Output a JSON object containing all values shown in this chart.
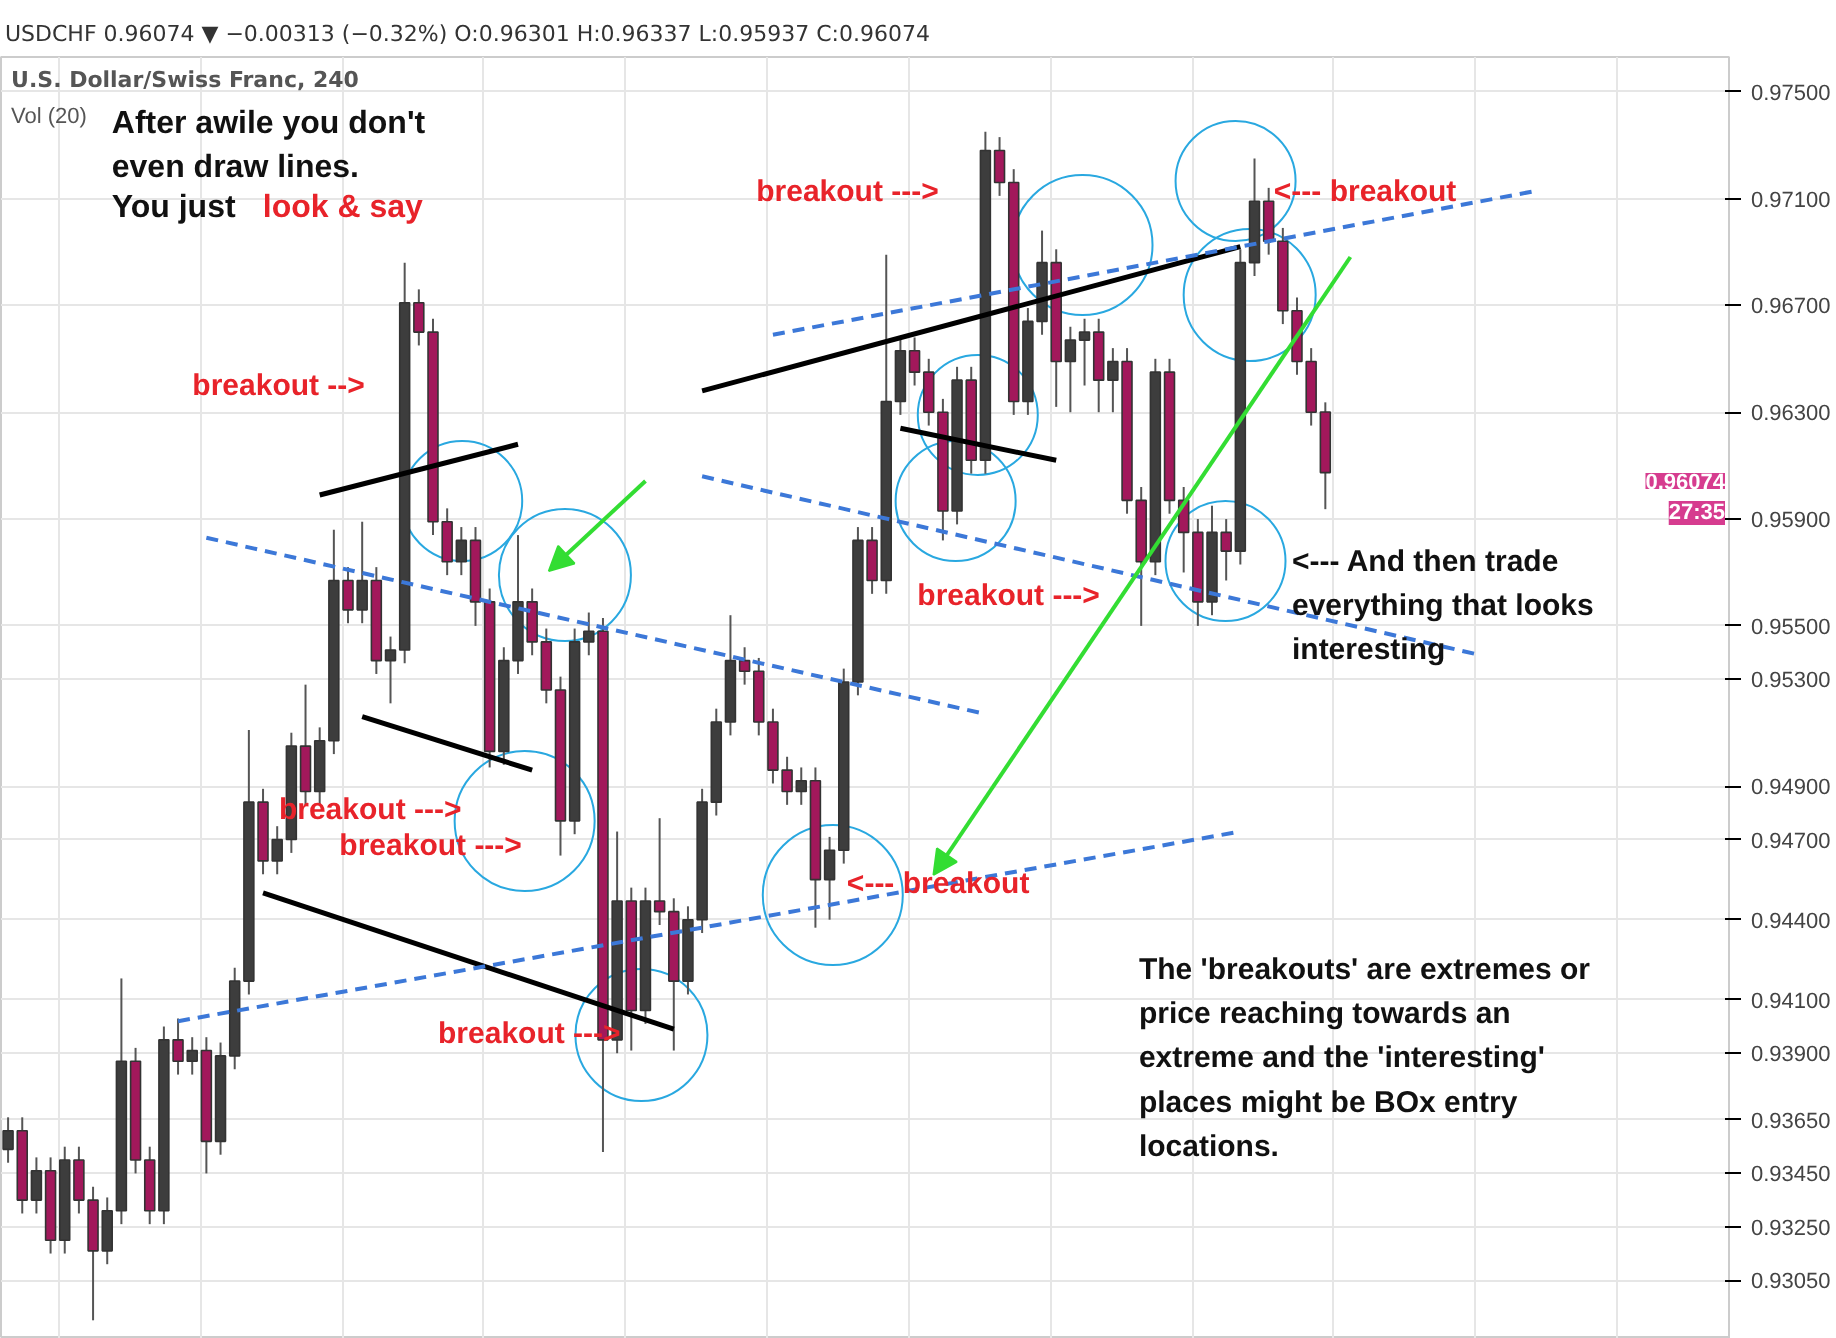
{
  "chart_data": {
    "type": "candlestick",
    "title": "USDCHF 0.96074 ▼ −0.00313 (−0.32%) O:0.96301 H:0.96337 L:0.95937 C:0.96074",
    "subtitle": "U.S. Dollar/Swiss Franc, 240",
    "categories": [
      null,
      null,
      null,
      null,
      null,
      null,
      null,
      null,
      null,
      null,
      null,
      null,
      null,
      null,
      null,
      null,
      null,
      null,
      null,
      null,
      null,
      null,
      null,
      null,
      null,
      null,
      null,
      null,
      null,
      null,
      null,
      null,
      null,
      null,
      null,
      null,
      null,
      null,
      null,
      null,
      null,
      null,
      null,
      null,
      null,
      null,
      null,
      null,
      null,
      null,
      null,
      null,
      null,
      null,
      null,
      null,
      null,
      null,
      null,
      null,
      null,
      null,
      null,
      null,
      null,
      null,
      null,
      null,
      null,
      null,
      null,
      null,
      null,
      null,
      null,
      null,
      null,
      null,
      null,
      null,
      null,
      null,
      null,
      null,
      null,
      null,
      null,
      null,
      null,
      null,
      null,
      null,
      null,
      null,
      null,
      null,
      null,
      null,
      null,
      null,
      null,
      null,
      null,
      null,
      null,
      null,
      null,
      null,
      null,
      null,
      null,
      null,
      null,
      null,
      null,
      null,
      null,
      null,
      null,
      null,
      null,
      null
    ],
    "ohlc": [
      [
        0.9354,
        0.9366,
        0.9349,
        0.9361
      ],
      [
        0.9361,
        0.9366,
        0.933,
        0.9335
      ],
      [
        0.9335,
        0.9351,
        0.933,
        0.9346
      ],
      [
        0.9346,
        0.9351,
        0.9315,
        0.932
      ],
      [
        0.932,
        0.9355,
        0.9315,
        0.935
      ],
      [
        0.935,
        0.9355,
        0.933,
        0.9335
      ],
      [
        0.9335,
        0.934,
        0.929,
        0.9316
      ],
      [
        0.9316,
        0.9336,
        0.9311,
        0.9331
      ],
      [
        0.9331,
        0.9418,
        0.9326,
        0.9387
      ],
      [
        0.9387,
        0.9392,
        0.9345,
        0.935
      ],
      [
        0.935,
        0.9355,
        0.9326,
        0.9331
      ],
      [
        0.9331,
        0.94,
        0.9326,
        0.9395
      ],
      [
        0.9395,
        0.9403,
        0.9382,
        0.9387
      ],
      [
        0.9387,
        0.9396,
        0.9382,
        0.9391
      ],
      [
        0.9391,
        0.9396,
        0.9345,
        0.9357
      ],
      [
        0.9357,
        0.9394,
        0.9352,
        0.9389
      ],
      [
        0.9389,
        0.9422,
        0.9384,
        0.9417
      ],
      [
        0.9417,
        0.9511,
        0.9412,
        0.9484
      ],
      [
        0.9484,
        0.9489,
        0.9457,
        0.9462
      ],
      [
        0.9462,
        0.9475,
        0.9457,
        0.947
      ],
      [
        0.947,
        0.951,
        0.9465,
        0.9505
      ],
      [
        0.9505,
        0.9528,
        0.9483,
        0.9488
      ],
      [
        0.9488,
        0.9512,
        0.9483,
        0.9507
      ],
      [
        0.9507,
        0.9586,
        0.9502,
        0.9567
      ],
      [
        0.9567,
        0.9572,
        0.9551,
        0.9556
      ],
      [
        0.9556,
        0.9589,
        0.9551,
        0.9567
      ],
      [
        0.9567,
        0.9572,
        0.9532,
        0.9537
      ],
      [
        0.9537,
        0.9546,
        0.9521,
        0.9541
      ],
      [
        0.9541,
        0.9686,
        0.9536,
        0.9671
      ],
      [
        0.9671,
        0.9676,
        0.9655,
        0.966
      ],
      [
        0.966,
        0.9665,
        0.9584,
        0.9589
      ],
      [
        0.9589,
        0.9594,
        0.9569,
        0.9574
      ],
      [
        0.9574,
        0.9587,
        0.9569,
        0.9582
      ],
      [
        0.9582,
        0.9587,
        0.955,
        0.9559
      ],
      [
        0.9559,
        0.9564,
        0.9497,
        0.9503
      ],
      [
        0.9503,
        0.9542,
        0.9498,
        0.9537
      ],
      [
        0.9537,
        0.9584,
        0.9532,
        0.9559
      ],
      [
        0.9559,
        0.9564,
        0.9539,
        0.9544
      ],
      [
        0.9544,
        0.9549,
        0.9521,
        0.9526
      ],
      [
        0.9526,
        0.9531,
        0.9464,
        0.9477
      ],
      [
        0.9477,
        0.9549,
        0.9472,
        0.9544
      ],
      [
        0.9544,
        0.9555,
        0.9539,
        0.9548
      ],
      [
        0.9548,
        0.9553,
        0.9353,
        0.9395
      ],
      [
        0.9395,
        0.9473,
        0.939,
        0.9447
      ],
      [
        0.9447,
        0.9452,
        0.9391,
        0.9406
      ],
      [
        0.9406,
        0.9452,
        0.9401,
        0.9447
      ],
      [
        0.9447,
        0.9478,
        0.9438,
        0.9443
      ],
      [
        0.9443,
        0.9448,
        0.9391,
        0.9417
      ],
      [
        0.9417,
        0.9445,
        0.9412,
        0.944
      ],
      [
        0.944,
        0.9489,
        0.9435,
        0.9484
      ],
      [
        0.9484,
        0.9519,
        0.9479,
        0.9514
      ],
      [
        0.9514,
        0.9554,
        0.9509,
        0.9537
      ],
      [
        0.9537,
        0.9542,
        0.9528,
        0.9533
      ],
      [
        0.9533,
        0.9538,
        0.9509,
        0.9514
      ],
      [
        0.9514,
        0.9519,
        0.9491,
        0.9496
      ],
      [
        0.9496,
        0.9501,
        0.9483,
        0.9488
      ],
      [
        0.9488,
        0.9497,
        0.9483,
        0.9492
      ],
      [
        0.9492,
        0.9497,
        0.9437,
        0.9455
      ],
      [
        0.9455,
        0.9471,
        0.944,
        0.9466
      ],
      [
        0.9466,
        0.9534,
        0.9461,
        0.9529
      ],
      [
        0.9529,
        0.9587,
        0.9524,
        0.9582
      ],
      [
        0.9582,
        0.9587,
        0.9562,
        0.9567
      ],
      [
        0.9567,
        0.9689,
        0.9562,
        0.9634
      ],
      [
        0.9634,
        0.9658,
        0.9629,
        0.9653
      ],
      [
        0.9653,
        0.9658,
        0.964,
        0.9645
      ],
      [
        0.9645,
        0.965,
        0.9625,
        0.963
      ],
      [
        0.963,
        0.9635,
        0.9582,
        0.9593
      ],
      [
        0.9593,
        0.9647,
        0.9588,
        0.9642
      ],
      [
        0.9642,
        0.9647,
        0.9607,
        0.9612
      ],
      [
        0.9612,
        0.9735,
        0.9607,
        0.9728
      ],
      [
        0.9728,
        0.9733,
        0.9711,
        0.9716
      ],
      [
        0.9716,
        0.9721,
        0.9629,
        0.9634
      ],
      [
        0.9634,
        0.9669,
        0.9629,
        0.9664
      ],
      [
        0.9664,
        0.9698,
        0.9659,
        0.9686
      ],
      [
        0.9686,
        0.9691,
        0.9632,
        0.9649
      ],
      [
        0.9649,
        0.9662,
        0.963,
        0.9657
      ],
      [
        0.9657,
        0.9665,
        0.964,
        0.966
      ],
      [
        0.966,
        0.9665,
        0.963,
        0.9642
      ],
      [
        0.9642,
        0.9654,
        0.963,
        0.9649
      ],
      [
        0.9649,
        0.9654,
        0.9592,
        0.9597
      ],
      [
        0.9597,
        0.9602,
        0.955,
        0.9574
      ],
      [
        0.9574,
        0.965,
        0.9569,
        0.9645
      ],
      [
        0.9645,
        0.965,
        0.9592,
        0.9597
      ],
      [
        0.9597,
        0.9602,
        0.957,
        0.9585
      ],
      [
        0.9585,
        0.959,
        0.955,
        0.9559
      ],
      [
        0.9559,
        0.9595,
        0.9554,
        0.9585
      ],
      [
        0.9585,
        0.959,
        0.9567,
        0.9578
      ],
      [
        0.9578,
        0.9691,
        0.9573,
        0.9686
      ],
      [
        0.9686,
        0.9725,
        0.9681,
        0.9709
      ],
      [
        0.9709,
        0.9714,
        0.9689,
        0.9694
      ],
      [
        0.9694,
        0.9699,
        0.9663,
        0.9668
      ],
      [
        0.9668,
        0.9673,
        0.9644,
        0.9649
      ],
      [
        0.9649,
        0.9654,
        0.9625,
        0.963
      ],
      [
        0.96301,
        0.96337,
        0.95937,
        0.96074
      ],
      null,
      null,
      null,
      null,
      null,
      null,
      null,
      null,
      null,
      null,
      null,
      null,
      null,
      null,
      null,
      null,
      null,
      null,
      null,
      null,
      null,
      null,
      null,
      null,
      null,
      null,
      null,
      null
    ],
    "colors": [
      "#3d3d3d",
      "#a2185b",
      "#3d3d3d",
      "#a2185b",
      "#3d3d3d",
      "#a2185b",
      "#a2185b",
      "#3d3d3d",
      "#3d3d3d",
      "#a2185b",
      "#a2185b",
      "#3d3d3d",
      "#a2185b",
      "#3d3d3d",
      "#a2185b",
      "#3d3d3d",
      "#3d3d3d",
      "#3d3d3d",
      "#a2185b",
      "#3d3d3d",
      "#3d3d3d",
      "#a2185b",
      "#3d3d3d",
      "#3d3d3d",
      "#a2185b",
      "#3d3d3d",
      "#a2185b",
      "#3d3d3d",
      "#3d3d3d",
      "#a2185b",
      "#a2185b",
      "#a2185b",
      "#3d3d3d",
      "#a2185b",
      "#a2185b",
      "#3d3d3d",
      "#3d3d3d",
      "#a2185b",
      "#a2185b",
      "#a2185b",
      "#3d3d3d",
      "#3d3d3d",
      "#a2185b",
      "#3d3d3d",
      "#a2185b",
      "#3d3d3d",
      "#a2185b",
      "#a2185b",
      "#3d3d3d",
      "#3d3d3d",
      "#3d3d3d",
      "#3d3d3d",
      "#a2185b",
      "#a2185b",
      "#a2185b",
      "#a2185b",
      "#3d3d3d",
      "#a2185b",
      "#3d3d3d",
      "#3d3d3d",
      "#3d3d3d",
      "#a2185b",
      "#3d3d3d",
      "#3d3d3d",
      "#a2185b",
      "#a2185b",
      "#a2185b",
      "#3d3d3d",
      "#a2185b",
      "#3d3d3d",
      "#a2185b",
      "#a2185b",
      "#3d3d3d",
      "#3d3d3d",
      "#a2185b",
      "#3d3d3d",
      "#3d3d3d",
      "#a2185b",
      "#3d3d3d",
      "#a2185b",
      "#a2185b",
      "#3d3d3d",
      "#a2185b",
      "#a2185b",
      "#a2185b",
      "#3d3d3d",
      "#a2185b",
      "#3d3d3d",
      "#3d3d3d",
      "#a2185b",
      "#a2185b",
      "#a2185b",
      "#a2185b",
      "#a2185b",
      null,
      null,
      null,
      null,
      null,
      null,
      null,
      null,
      null,
      null,
      null,
      null,
      null,
      null,
      null,
      null,
      null,
      null,
      null,
      null,
      null,
      null,
      null,
      null,
      null,
      null,
      null,
      null
    ],
    "series": [
      {
        "type": "line",
        "values": [
          null,
          null,
          null,
          null,
          null,
          null,
          null,
          null,
          null,
          null,
          null,
          null,
          null,
          null,
          null,
          null,
          null,
          null,
          null,
          null,
          null,
          null,
          0.9599,
          null,
          null,
          null,
          null,
          null,
          null,
          null,
          null,
          null,
          null,
          null,
          null,
          null,
          0.9618,
          null,
          null,
          null,
          null,
          null,
          null,
          null,
          null,
          null,
          null,
          null,
          null,
          null,
          null,
          null,
          null,
          null,
          null,
          null,
          null,
          null,
          null,
          null,
          null,
          null,
          null,
          null,
          null,
          null,
          null,
          null,
          null,
          null,
          null,
          null,
          null,
          null,
          null,
          null,
          null,
          null,
          null,
          null,
          null,
          null,
          null,
          null,
          null,
          null,
          null,
          null,
          null,
          null,
          null,
          null,
          null,
          null,
          null,
          null,
          null,
          null,
          null,
          null,
          null,
          null,
          null,
          null,
          null,
          null,
          null,
          null,
          null,
          null,
          null,
          null,
          null,
          null,
          null,
          null,
          null,
          null,
          null,
          null,
          null,
          null
        ],
        "color": "#000000",
        "line_style": "solid"
      },
      {
        "type": "line",
        "values": [
          null,
          null,
          null,
          null,
          null,
          null,
          null,
          null,
          null,
          null,
          null,
          null,
          null,
          null,
          null,
          null,
          null,
          null,
          null,
          null,
          null,
          null,
          null,
          null,
          null,
          0.9516,
          null,
          null,
          null,
          null,
          null,
          null,
          null,
          null,
          null,
          null,
          null,
          0.9496,
          null,
          null,
          null,
          null,
          null,
          null,
          null,
          null,
          null,
          null,
          null,
          null,
          null,
          null,
          null,
          null,
          null,
          null,
          null,
          null,
          null,
          null,
          null,
          null,
          null,
          null,
          null,
          null,
          null,
          null,
          null,
          null,
          null,
          null,
          null,
          null,
          null,
          null,
          null,
          null,
          null,
          null,
          null,
          null,
          null,
          null,
          null,
          null,
          null,
          null,
          null,
          null,
          null,
          null,
          null,
          null,
          null,
          null,
          null,
          null,
          null,
          null,
          null,
          null,
          null,
          null,
          null,
          null,
          null,
          null,
          null,
          null,
          null,
          null,
          null,
          null,
          null,
          null,
          null,
          null,
          null,
          null,
          null,
          null
        ],
        "color": "#000000",
        "line_style": "solid"
      },
      {
        "type": "line",
        "values": [
          null,
          null,
          null,
          null,
          null,
          null,
          null,
          null,
          null,
          null,
          null,
          null,
          null,
          null,
          null,
          null,
          null,
          null,
          0.945,
          null,
          null,
          null,
          null,
          null,
          null,
          null,
          null,
          null,
          null,
          null,
          null,
          null,
          null,
          null,
          null,
          null,
          null,
          null,
          null,
          null,
          null,
          null,
          null,
          null,
          null,
          null,
          null,
          0.9399,
          null,
          null,
          null,
          null,
          null,
          null,
          null,
          null,
          null,
          null,
          null,
          null,
          null,
          null,
          null,
          null,
          null,
          null,
          null,
          null,
          null,
          null,
          null,
          null,
          null,
          null,
          null,
          null,
          null,
          null,
          null,
          null,
          null,
          null,
          null,
          null,
          null,
          null,
          null,
          null,
          null,
          null,
          null,
          null,
          null,
          null,
          null,
          null,
          null,
          null,
          null,
          null,
          null,
          null,
          null,
          null,
          null,
          null,
          null,
          null,
          null,
          null,
          null,
          null,
          null,
          null,
          null,
          null,
          null,
          null,
          null,
          null,
          null,
          null
        ],
        "color": "#000000",
        "line_style": "solid"
      },
      {
        "type": "line",
        "values": [
          null,
          null,
          null,
          null,
          null,
          null,
          null,
          null,
          null,
          null,
          null,
          null,
          null,
          null,
          null,
          null,
          null,
          null,
          null,
          null,
          null,
          null,
          null,
          null,
          null,
          null,
          null,
          null,
          null,
          null,
          null,
          null,
          null,
          null,
          null,
          null,
          null,
          null,
          null,
          null,
          null,
          null,
          null,
          null,
          null,
          null,
          null,
          null,
          null,
          0.9638,
          null,
          null,
          null,
          null,
          null,
          null,
          null,
          null,
          null,
          null,
          null,
          null,
          null,
          null,
          null,
          null,
          null,
          null,
          null,
          null,
          null,
          null,
          null,
          null,
          null,
          null,
          null,
          null,
          null,
          null,
          null,
          null,
          null,
          null,
          null,
          null,
          null,
          0.9692,
          null,
          null,
          null,
          null,
          null,
          null,
          null,
          null,
          null,
          null,
          null,
          null,
          null,
          null,
          null,
          null,
          null,
          null,
          null,
          null,
          null,
          null,
          null,
          null,
          null,
          null,
          null,
          null,
          null,
          null,
          null,
          null,
          null,
          null
        ],
        "color": "#000000",
        "line_style": "solid"
      },
      {
        "type": "line",
        "values": [
          null,
          null,
          null,
          null,
          null,
          null,
          null,
          null,
          null,
          null,
          null,
          null,
          null,
          null,
          null,
          null,
          null,
          null,
          null,
          null,
          null,
          null,
          null,
          null,
          null,
          null,
          null,
          null,
          null,
          null,
          null,
          null,
          null,
          null,
          null,
          null,
          null,
          null,
          null,
          null,
          null,
          null,
          null,
          null,
          null,
          null,
          null,
          null,
          null,
          null,
          null,
          null,
          null,
          null,
          null,
          null,
          null,
          null,
          null,
          null,
          null,
          null,
          null,
          0.9624,
          null,
          null,
          null,
          null,
          null,
          null,
          null,
          null,
          null,
          null,
          0.9612,
          null,
          null,
          null,
          null,
          null,
          null,
          null,
          null,
          null,
          null,
          null,
          null,
          null,
          null,
          null,
          null,
          null,
          null,
          null,
          null,
          null,
          null,
          null,
          null,
          null,
          null,
          null,
          null,
          null,
          null,
          null,
          null,
          null,
          null,
          null,
          null,
          null,
          null,
          null,
          null,
          null,
          null,
          null,
          null,
          null,
          null,
          null
        ],
        "color": "#000000",
        "line_style": "solid"
      },
      {
        "type": "line",
        "values": [
          null,
          null,
          null,
          null,
          null,
          null,
          null,
          null,
          null,
          null,
          null,
          null,
          null,
          null,
          0.9583,
          null,
          null,
          null,
          null,
          null,
          null,
          null,
          null,
          null,
          null,
          null,
          null,
          null,
          null,
          null,
          null,
          null,
          null,
          null,
          null,
          null,
          null,
          null,
          null,
          null,
          null,
          null,
          null,
          null,
          null,
          null,
          null,
          null,
          null,
          null,
          null,
          null,
          null,
          null,
          null,
          null,
          null,
          null,
          null,
          null,
          null,
          null,
          null,
          null,
          null,
          null,
          null,
          null,
          null,
          0.9517,
          null,
          null,
          null,
          null,
          null,
          null,
          null,
          null,
          null,
          null,
          null,
          null,
          null,
          null,
          null,
          null,
          null,
          null,
          null,
          null,
          null,
          null,
          null,
          null,
          null,
          null,
          null,
          null,
          null,
          null,
          null,
          null,
          null,
          null,
          null,
          null,
          null,
          null,
          null,
          null,
          null,
          null,
          null,
          null,
          null,
          null,
          null,
          null,
          null,
          null,
          null,
          null
        ],
        "color": "#3c78d8",
        "line_style": "dashed"
      },
      {
        "type": "line",
        "values": [
          null,
          null,
          null,
          null,
          null,
          null,
          null,
          null,
          null,
          null,
          null,
          null,
          0.9402,
          null,
          null,
          null,
          null,
          null,
          null,
          null,
          null,
          null,
          null,
          null,
          null,
          null,
          null,
          null,
          null,
          null,
          null,
          null,
          null,
          null,
          null,
          null,
          null,
          null,
          null,
          null,
          null,
          null,
          null,
          null,
          null,
          null,
          null,
          null,
          null,
          null,
          null,
          null,
          null,
          null,
          null,
          null,
          null,
          null,
          null,
          null,
          null,
          null,
          null,
          null,
          null,
          null,
          null,
          null,
          null,
          null,
          null,
          null,
          null,
          null,
          null,
          null,
          null,
          null,
          null,
          null,
          null,
          null,
          null,
          null,
          null,
          null,
          null,
          0.9473,
          null,
          null,
          null,
          null,
          null,
          null,
          null,
          null,
          null,
          null,
          null,
          null,
          null,
          null,
          null,
          null,
          null,
          null,
          null,
          null,
          null,
          null,
          null,
          null,
          null,
          null,
          null,
          null,
          null,
          null,
          null,
          null,
          null,
          null
        ],
        "color": "#3c78d8",
        "line_style": "dashed"
      },
      {
        "type": "line",
        "values": [
          null,
          null,
          null,
          null,
          null,
          null,
          null,
          null,
          null,
          null,
          null,
          null,
          null,
          null,
          null,
          null,
          null,
          null,
          null,
          null,
          null,
          null,
          null,
          null,
          null,
          null,
          null,
          null,
          null,
          null,
          null,
          null,
          null,
          null,
          null,
          null,
          null,
          null,
          null,
          null,
          null,
          null,
          null,
          null,
          null,
          null,
          null,
          null,
          null,
          0.9606,
          null,
          null,
          null,
          null,
          null,
          null,
          null,
          null,
          null,
          null,
          null,
          null,
          null,
          null,
          null,
          null,
          null,
          null,
          null,
          null,
          null,
          null,
          null,
          null,
          null,
          null,
          null,
          null,
          null,
          null,
          null,
          null,
          null,
          null,
          null,
          null,
          null,
          null,
          null,
          null,
          null,
          null,
          null,
          null,
          null,
          null,
          null,
          null,
          null,
          null,
          null,
          null,
          null,
          null,
          0.9539,
          null,
          null,
          null,
          null,
          null,
          null,
          null,
          null,
          null,
          null,
          null,
          null,
          null,
          null,
          null,
          null,
          null
        ],
        "color": "#3c78d8",
        "line_style": "dashed"
      },
      {
        "type": "line",
        "values": [
          null,
          null,
          null,
          null,
          null,
          null,
          null,
          null,
          null,
          null,
          null,
          null,
          null,
          null,
          null,
          null,
          null,
          null,
          null,
          null,
          null,
          null,
          null,
          null,
          null,
          null,
          null,
          null,
          null,
          null,
          null,
          null,
          null,
          null,
          null,
          null,
          null,
          null,
          null,
          null,
          null,
          null,
          null,
          null,
          null,
          null,
          null,
          null,
          null,
          null,
          null,
          null,
          null,
          null,
          0.9659,
          null,
          null,
          null,
          null,
          null,
          null,
          null,
          null,
          null,
          null,
          null,
          null,
          null,
          null,
          null,
          null,
          null,
          null,
          null,
          null,
          null,
          null,
          null,
          null,
          null,
          null,
          null,
          null,
          null,
          null,
          null,
          null,
          null,
          null,
          null,
          null,
          null,
          null,
          null,
          null,
          null,
          null,
          null,
          null,
          null,
          null,
          null,
          null,
          null,
          null,
          null,
          null,
          null,
          0.9713,
          null,
          null,
          null,
          null,
          null,
          null,
          null,
          null,
          null,
          null,
          null,
          null,
          null
        ],
        "color": "#3c78d8",
        "line_style": "dashed"
      }
    ],
    "ylim": [
      0.9283,
      0.9763
    ],
    "yticks": [
      {
        "value": 0.975,
        "label": "0.97500"
      },
      {
        "value": 0.971,
        "label": "0.97100"
      },
      {
        "value": 0.967,
        "label": "0.96700"
      },
      {
        "value": 0.963,
        "label": "0.96300"
      },
      {
        "value": 0.959,
        "label": "0.95900"
      },
      {
        "value": 0.955,
        "label": "0.95500"
      },
      {
        "value": 0.953,
        "label": "0.95300"
      },
      {
        "value": 0.949,
        "label": "0.94900"
      },
      {
        "value": 0.947,
        "label": "0.94700"
      },
      {
        "value": 0.944,
        "label": "0.94400"
      },
      {
        "value": 0.941,
        "label": "0.94100"
      },
      {
        "value": 0.939,
        "label": "0.93900"
      },
      {
        "value": 0.9365,
        "label": "0.93650"
      },
      {
        "value": 0.9345,
        "label": "0.93450"
      },
      {
        "value": 0.9325,
        "label": "0.93250"
      },
      {
        "value": 0.9305,
        "label": "0.93050"
      }
    ],
    "grid": true,
    "tick_labels": "y",
    "annotations": [
      "After awile you don't\neven draw lines.",
      "You just",
      "look & say",
      "breakout -->",
      "breakout --->",
      "<--- breakout",
      "breakout --->",
      "breakout --->",
      "breakout --->",
      "breakout --->",
      "<--- breakout",
      "<--- And then trade\neverything that looks\ninteresting",
      "The 'breakouts' are extremes or\nprice reaching towards an\nextreme and the 'interesting'\nplaces might be BOx entry\nlocations.",
      "Vol (20)",
      "0.96074",
      "27:35"
    ]
  }
}
